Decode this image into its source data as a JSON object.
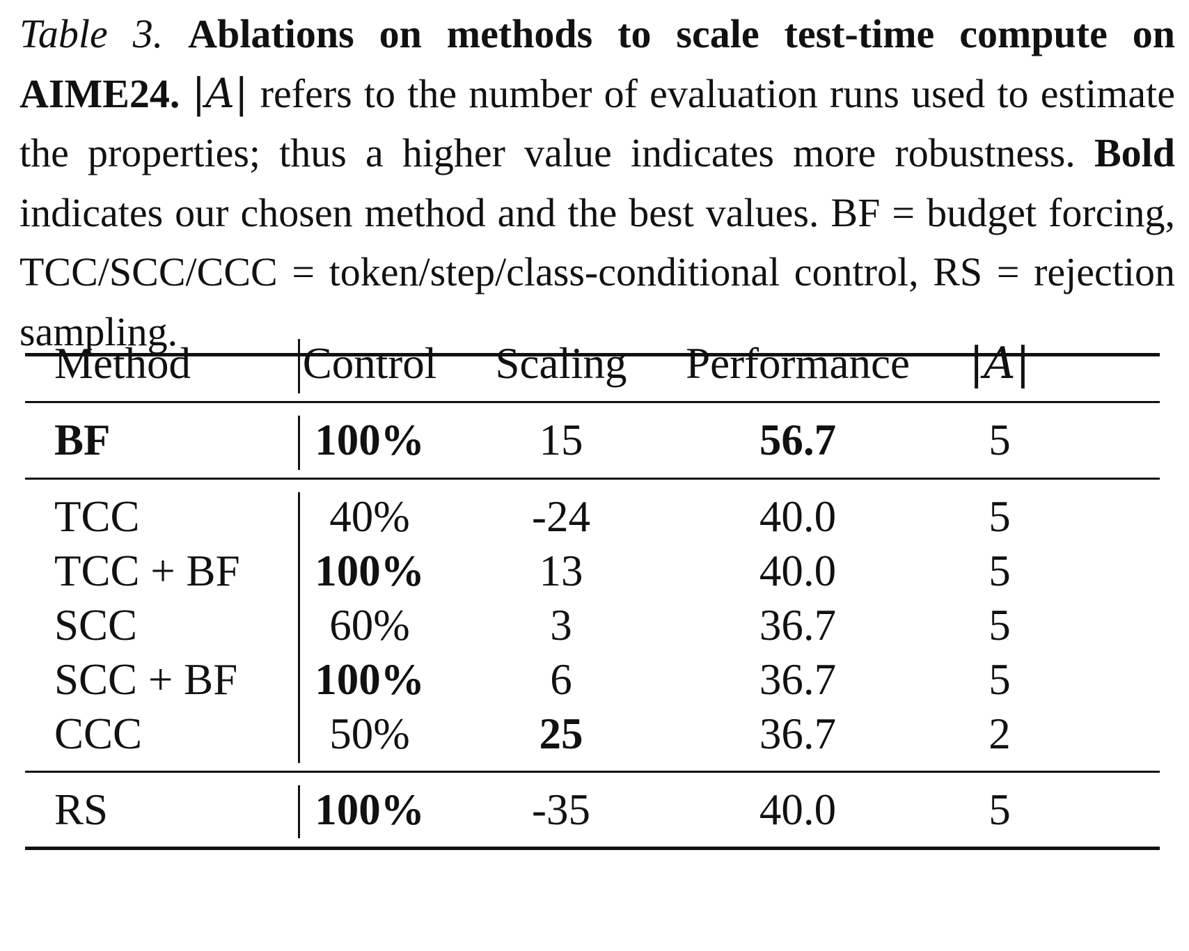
{
  "caption": {
    "label": "Table 3.",
    "title": "Ablations on methods to scale test-time compute on AIME24.",
    "runs_symbol": "|A|",
    "text1": "refers to the number of evaluation runs used to estimate the properties; thus a higher value indicates more robustness.",
    "bold_word": "Bold",
    "text2": "indicates our chosen method and the best values. BF = budget forcing, TCC/SCC/CCC = token/step/class-conditional control, RS = rejection sampling."
  },
  "table": {
    "headers": {
      "method": "Method",
      "control": "Control",
      "scaling": "Scaling",
      "performance": "Performance",
      "runs": "|A|"
    },
    "rows": [
      {
        "method": "BF",
        "control": "100%",
        "scaling": "15",
        "performance": "56.7",
        "runs": "5"
      },
      {
        "method": "TCC",
        "control": "40%",
        "scaling": "-24",
        "performance": "40.0",
        "runs": "5"
      },
      {
        "method": "TCC + BF",
        "control": "100%",
        "scaling": "13",
        "performance": "40.0",
        "runs": "5"
      },
      {
        "method": "SCC",
        "control": "60%",
        "scaling": "3",
        "performance": "36.7",
        "runs": "5"
      },
      {
        "method": "SCC + BF",
        "control": "100%",
        "scaling": "6",
        "performance": "36.7",
        "runs": "5"
      },
      {
        "method": "CCC",
        "control": "50%",
        "scaling": "25",
        "performance": "36.7",
        "runs": "2"
      },
      {
        "method": "RS",
        "control": "100%",
        "scaling": "-35",
        "performance": "40.0",
        "runs": "5"
      }
    ]
  }
}
